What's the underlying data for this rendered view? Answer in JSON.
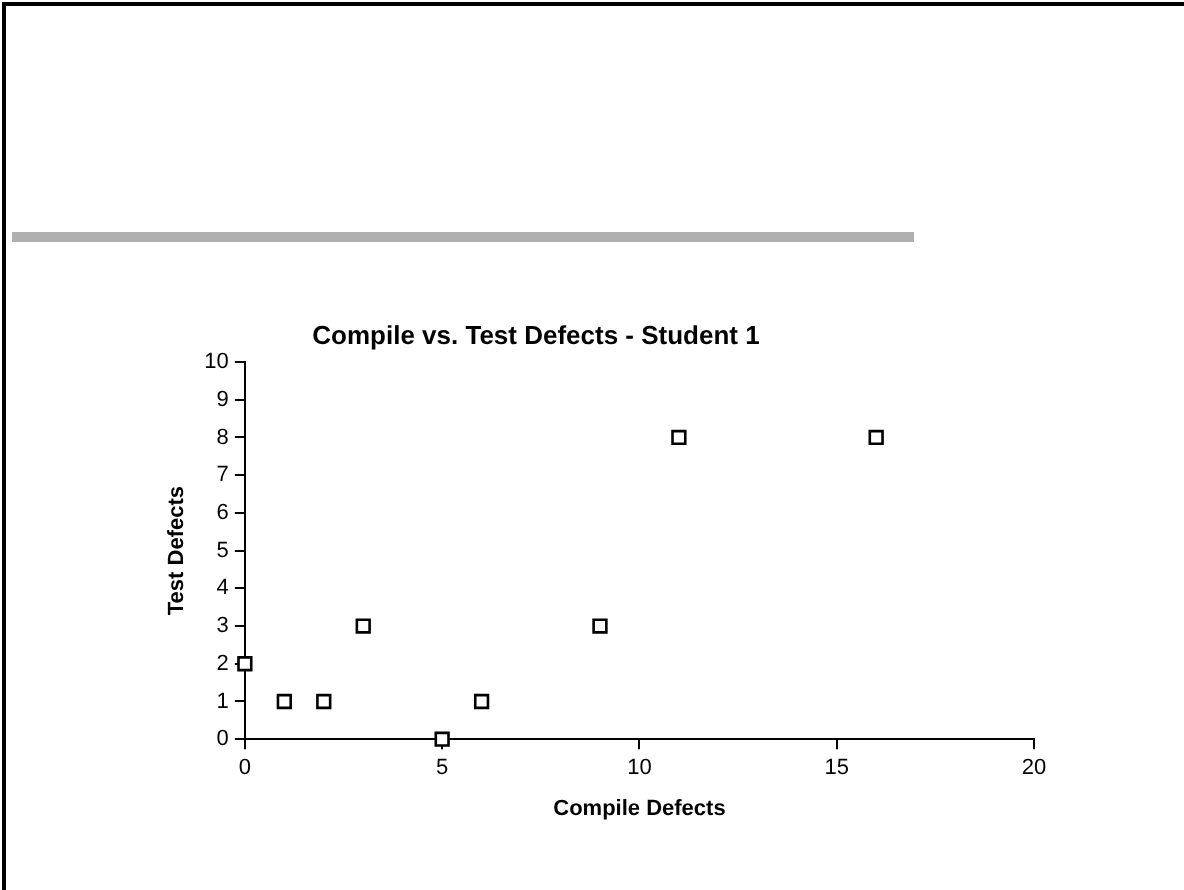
{
  "chart_data": {
    "type": "scatter",
    "title": "Compile vs. Test Defects - Student 1",
    "xlabel": "Compile Defects",
    "ylabel": "Test Defects",
    "x": [
      0,
      1,
      2,
      3,
      5,
      6,
      9,
      11,
      16
    ],
    "values": [
      2,
      1,
      1,
      3,
      0,
      1,
      3,
      8,
      8
    ],
    "color": "#000000",
    "marker": "square",
    "xlim": [
      0,
      20
    ],
    "xticks": [
      0,
      5,
      10,
      15,
      20
    ],
    "ylim": [
      0,
      10
    ],
    "yticks": [
      0,
      1,
      2,
      3,
      4,
      5,
      6,
      7,
      8,
      9,
      10
    ],
    "grid": false,
    "legend": false
  }
}
